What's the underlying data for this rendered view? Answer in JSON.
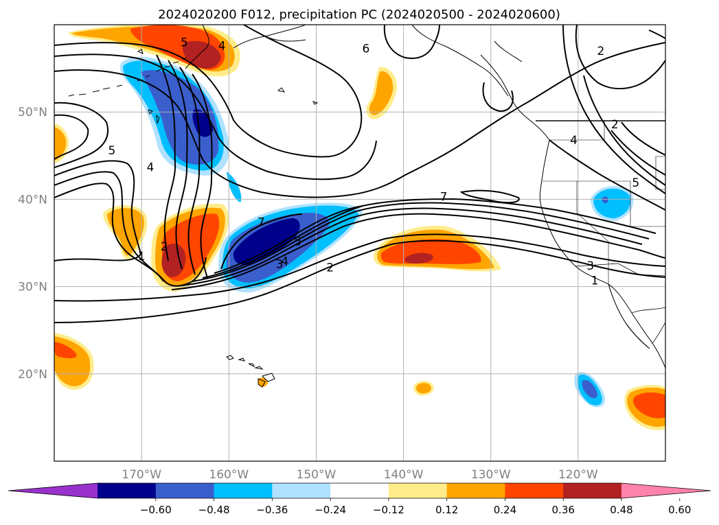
{
  "title": "2024020200 F012, precipitation PC (2024020500 - 2024020600)",
  "map": {
    "lon_range": [
      -180,
      -110
    ],
    "lat_range": [
      10,
      60
    ],
    "lat_ticks": [
      {
        "value": 20,
        "label": "20°N"
      },
      {
        "value": 30,
        "label": "30°N"
      },
      {
        "value": 40,
        "label": "40°N"
      },
      {
        "value": 50,
        "label": "50°N"
      }
    ],
    "lon_ticks": [
      {
        "value": -170,
        "label": "170°W"
      },
      {
        "value": -160,
        "label": "160°W"
      },
      {
        "value": -150,
        "label": "150°W"
      },
      {
        "value": -140,
        "label": "140°W"
      },
      {
        "value": -130,
        "label": "130°W"
      },
      {
        "value": -120,
        "label": "120°W"
      }
    ],
    "grid": true
  },
  "colorbar": {
    "colors": [
      "#9932cc",
      "#00008b",
      "#3a5fcd",
      "#00bfff",
      "#b0e2ff",
      "#ffffff",
      "#ffec8b",
      "#ffa500",
      "#ff4500",
      "#b22222",
      "#ff82ab"
    ],
    "ticks": [
      "−0.60",
      "−0.48",
      "−0.36",
      "−0.24",
      "−0.12",
      "0.12",
      "0.24",
      "0.36",
      "0.48",
      "0.60"
    ]
  },
  "contour_labels": [
    {
      "text": "5",
      "lon": -165.1,
      "lat": 58.0
    },
    {
      "text": "4",
      "lon": -160.8,
      "lat": 57.6
    },
    {
      "text": "6",
      "lon": -144.3,
      "lat": 57.3
    },
    {
      "text": "2",
      "lon": -117.4,
      "lat": 57.0
    },
    {
      "text": "5",
      "lon": -173.4,
      "lat": 45.6
    },
    {
      "text": "4",
      "lon": -169.0,
      "lat": 43.7
    },
    {
      "text": "4",
      "lon": -120.5,
      "lat": 46.8
    },
    {
      "text": "2",
      "lon": -115.8,
      "lat": 48.6
    },
    {
      "text": "5",
      "lon": -113.4,
      "lat": 41.9
    },
    {
      "text": "7",
      "lon": -135.4,
      "lat": 40.3
    },
    {
      "text": "1",
      "lon": -170.0,
      "lat": 33.5
    },
    {
      "text": "2",
      "lon": -167.4,
      "lat": 34.6
    },
    {
      "text": "7",
      "lon": -156.3,
      "lat": 37.4
    },
    {
      "text": "5",
      "lon": -152.1,
      "lat": 35.2
    },
    {
      "text": "4",
      "lon": -153.6,
      "lat": 32.9
    },
    {
      "text": "3",
      "lon": -154.2,
      "lat": 32.6
    },
    {
      "text": "2",
      "lon": -148.4,
      "lat": 32.2
    },
    {
      "text": "3",
      "lon": -118.6,
      "lat": 32.4
    },
    {
      "text": "1",
      "lon": -118.1,
      "lat": 30.7
    }
  ]
}
